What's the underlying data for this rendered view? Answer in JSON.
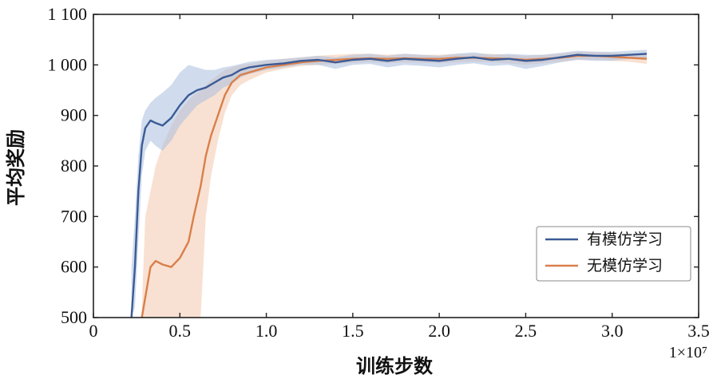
{
  "chart_data": {
    "type": "line",
    "title": "",
    "xlabel": "训练步数",
    "ylabel": "平均奖励",
    "x_multiplier_label": "1×10⁷",
    "xlim": [
      0,
      3.5
    ],
    "ylim": [
      500,
      1100
    ],
    "x_ticks": [
      0,
      0.5,
      1.0,
      1.5,
      2.0,
      2.5,
      3.0,
      3.5
    ],
    "x_tick_labels": [
      "0",
      "0.5",
      "1.0",
      "1.5",
      "2.0",
      "2.5",
      "3.0",
      "3.5"
    ],
    "y_ticks": [
      500,
      600,
      700,
      800,
      900,
      1000,
      1100
    ],
    "y_tick_labels": [
      "500",
      "600",
      "700",
      "800",
      "900",
      "1 000",
      "1 100"
    ],
    "grid": false,
    "legend_position": "lower-right",
    "series": [
      {
        "name": "有模仿学习",
        "color": "#3b5b96",
        "band_color": "#a9bfdf",
        "x": [
          0.22,
          0.24,
          0.26,
          0.28,
          0.3,
          0.33,
          0.36,
          0.4,
          0.45,
          0.5,
          0.55,
          0.6,
          0.65,
          0.7,
          0.75,
          0.8,
          0.85,
          0.9,
          1.0,
          1.1,
          1.2,
          1.3,
          1.4,
          1.5,
          1.6,
          1.7,
          1.8,
          1.9,
          2.0,
          2.1,
          2.2,
          2.3,
          2.4,
          2.5,
          2.6,
          2.7,
          2.8,
          2.9,
          3.0,
          3.1,
          3.2
        ],
        "y": [
          500,
          600,
          750,
          840,
          875,
          890,
          885,
          880,
          895,
          920,
          940,
          950,
          955,
          965,
          975,
          980,
          990,
          995,
          1000,
          1003,
          1008,
          1010,
          1005,
          1010,
          1012,
          1008,
          1012,
          1010,
          1008,
          1012,
          1015,
          1010,
          1012,
          1008,
          1010,
          1015,
          1020,
          1018,
          1018,
          1020,
          1022
        ],
        "lower": [
          500,
          520,
          650,
          780,
          830,
          850,
          840,
          830,
          850,
          880,
          900,
          920,
          930,
          940,
          955,
          962,
          975,
          982,
          990,
          995,
          1000,
          1000,
          992,
          1000,
          1002,
          995,
          1000,
          998,
          995,
          1000,
          1003,
          998,
          1000,
          992,
          998,
          1005,
          1010,
          1008,
          1008,
          1012,
          1014
        ],
        "upper": [
          600,
          700,
          820,
          890,
          910,
          925,
          935,
          945,
          960,
          985,
          1000,
          995,
          990,
          990,
          995,
          998,
          1002,
          1006,
          1010,
          1012,
          1015,
          1018,
          1015,
          1020,
          1022,
          1018,
          1022,
          1020,
          1018,
          1022,
          1025,
          1020,
          1022,
          1020,
          1020,
          1024,
          1028,
          1026,
          1026,
          1028,
          1030
        ]
      },
      {
        "name": "无模仿学习",
        "color": "#d97f4b",
        "band_color": "#f3c9ad",
        "x": [
          0.28,
          0.3,
          0.33,
          0.36,
          0.4,
          0.45,
          0.5,
          0.55,
          0.58,
          0.62,
          0.65,
          0.68,
          0.72,
          0.76,
          0.8,
          0.85,
          0.9,
          1.0,
          1.1,
          1.2,
          1.3,
          1.4,
          1.5,
          1.6,
          1.7,
          1.8,
          1.9,
          2.0,
          2.1,
          2.2,
          2.3,
          2.4,
          2.5,
          2.6,
          2.7,
          2.8,
          2.9,
          3.0,
          3.1,
          3.2
        ],
        "y": [
          500,
          540,
          600,
          612,
          605,
          600,
          618,
          650,
          700,
          760,
          820,
          860,
          900,
          940,
          965,
          980,
          985,
          995,
          1000,
          1005,
          1008,
          1010,
          1012,
          1013,
          1012,
          1013,
          1012,
          1012,
          1014,
          1014,
          1013,
          1012,
          1010,
          1012,
          1014,
          1018,
          1018,
          1016,
          1014,
          1012
        ],
        "lower": [
          500,
          500,
          500,
          500,
          500,
          500,
          500,
          500,
          500,
          500,
          700,
          780,
          850,
          905,
          940,
          960,
          970,
          985,
          992,
          998,
          1000,
          1002,
          1004,
          1005,
          1003,
          1005,
          1004,
          1003,
          1005,
          1006,
          1005,
          1003,
          1000,
          1003,
          1006,
          1010,
          1010,
          1008,
          1006,
          1002
        ],
        "upper": [
          520,
          700,
          750,
          800,
          840,
          880,
          910,
          930,
          940,
          950,
          960,
          970,
          980,
          990,
          995,
          1000,
          1002,
          1008,
          1012,
          1015,
          1018,
          1020,
          1022,
          1022,
          1020,
          1022,
          1020,
          1020,
          1022,
          1022,
          1022,
          1020,
          1018,
          1020,
          1022,
          1026,
          1026,
          1024,
          1022,
          1020
        ]
      }
    ]
  }
}
